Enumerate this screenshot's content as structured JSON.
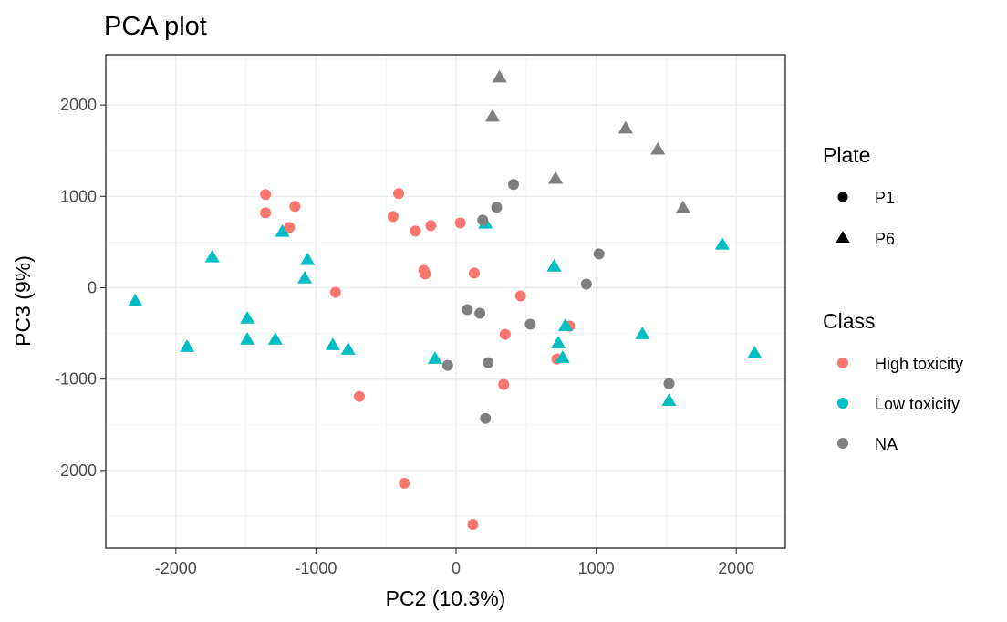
{
  "chart_data": {
    "type": "scatter",
    "title": "PCA plot",
    "xlabel": "PC2 (10.3%)",
    "ylabel": "PC3 (9%)",
    "xlim": [
      -2500,
      2350
    ],
    "ylim": [
      -2850,
      2550
    ],
    "x_ticks": [
      -2000,
      -1000,
      0,
      1000,
      2000
    ],
    "x_tick_labels": [
      "-2000",
      "-1000",
      "0",
      "1000",
      "2000"
    ],
    "y_ticks": [
      -2000,
      -1000,
      0,
      1000,
      2000
    ],
    "y_tick_labels": [
      "-2000",
      "-1000",
      "0",
      "1000",
      "2000"
    ],
    "grid": true,
    "legend_position": "right",
    "legends": {
      "shape": {
        "title": "Plate",
        "entries": [
          {
            "label": "P1",
            "shape": "circle"
          },
          {
            "label": "P6",
            "shape": "triangle"
          }
        ]
      },
      "color": {
        "title": "Class",
        "entries": [
          {
            "label": "High toxicity",
            "color": "#F8766D"
          },
          {
            "label": "Low toxicity",
            "color": "#00BFC4"
          },
          {
            "label": "NA",
            "color": "#7F7F7F"
          }
        ]
      }
    },
    "series": [
      {
        "name": "High toxicity",
        "color": "#F8766D",
        "points": [
          {
            "x": -1360,
            "y": 1020,
            "plate": "P1"
          },
          {
            "x": -1360,
            "y": 820,
            "plate": "P1"
          },
          {
            "x": -1150,
            "y": 890,
            "plate": "P1"
          },
          {
            "x": -1190,
            "y": 660,
            "plate": "P1"
          },
          {
            "x": -410,
            "y": 1030,
            "plate": "P1"
          },
          {
            "x": -450,
            "y": 780,
            "plate": "P1"
          },
          {
            "x": -290,
            "y": 620,
            "plate": "P1"
          },
          {
            "x": -180,
            "y": 680,
            "plate": "P1"
          },
          {
            "x": 30,
            "y": 710,
            "plate": "P1"
          },
          {
            "x": -230,
            "y": 190,
            "plate": "P1"
          },
          {
            "x": -220,
            "y": 150,
            "plate": "P1"
          },
          {
            "x": 130,
            "y": 160,
            "plate": "P1"
          },
          {
            "x": -860,
            "y": -50,
            "plate": "P1"
          },
          {
            "x": 460,
            "y": -90,
            "plate": "P1"
          },
          {
            "x": 350,
            "y": -510,
            "plate": "P1"
          },
          {
            "x": 810,
            "y": -420,
            "plate": "P1"
          },
          {
            "x": 720,
            "y": -780,
            "plate": "P1"
          },
          {
            "x": 340,
            "y": -1060,
            "plate": "P1"
          },
          {
            "x": -690,
            "y": -1190,
            "plate": "P1"
          },
          {
            "x": -370,
            "y": -2140,
            "plate": "P1"
          },
          {
            "x": 120,
            "y": -2590,
            "plate": "P1"
          }
        ]
      },
      {
        "name": "Low toxicity",
        "color": "#00BFC4",
        "points": [
          {
            "x": -2290,
            "y": -150,
            "plate": "P6"
          },
          {
            "x": -1920,
            "y": -650,
            "plate": "P6"
          },
          {
            "x": -1740,
            "y": 330,
            "plate": "P6"
          },
          {
            "x": -1490,
            "y": -340,
            "plate": "P6"
          },
          {
            "x": -1490,
            "y": -570,
            "plate": "P6"
          },
          {
            "x": -1290,
            "y": -570,
            "plate": "P6"
          },
          {
            "x": -1240,
            "y": 610,
            "plate": "P6"
          },
          {
            "x": -1060,
            "y": 300,
            "plate": "P6"
          },
          {
            "x": -1080,
            "y": 100,
            "plate": "P6"
          },
          {
            "x": -880,
            "y": -630,
            "plate": "P6"
          },
          {
            "x": -770,
            "y": -680,
            "plate": "P6"
          },
          {
            "x": -150,
            "y": -780,
            "plate": "P6"
          },
          {
            "x": 210,
            "y": 700,
            "plate": "P6"
          },
          {
            "x": 700,
            "y": 230,
            "plate": "P6"
          },
          {
            "x": 780,
            "y": -420,
            "plate": "P6"
          },
          {
            "x": 730,
            "y": -610,
            "plate": "P6"
          },
          {
            "x": 760,
            "y": -770,
            "plate": "P6"
          },
          {
            "x": 1330,
            "y": -510,
            "plate": "P6"
          },
          {
            "x": 1520,
            "y": -1240,
            "plate": "P6"
          },
          {
            "x": 1900,
            "y": 470,
            "plate": "P6"
          },
          {
            "x": 2130,
            "y": -720,
            "plate": "P6"
          }
        ]
      },
      {
        "name": "NA",
        "color": "#7F7F7F",
        "points": [
          {
            "x": 310,
            "y": 2300,
            "plate": "P6"
          },
          {
            "x": 260,
            "y": 1870,
            "plate": "P6"
          },
          {
            "x": 1210,
            "y": 1740,
            "plate": "P6"
          },
          {
            "x": 1440,
            "y": 1510,
            "plate": "P6"
          },
          {
            "x": 710,
            "y": 1190,
            "plate": "P6"
          },
          {
            "x": 1620,
            "y": 870,
            "plate": "P6"
          },
          {
            "x": 410,
            "y": 1130,
            "plate": "P1"
          },
          {
            "x": 290,
            "y": 880,
            "plate": "P1"
          },
          {
            "x": 190,
            "y": 740,
            "plate": "P1"
          },
          {
            "x": 1020,
            "y": 370,
            "plate": "P1"
          },
          {
            "x": 930,
            "y": 40,
            "plate": "P1"
          },
          {
            "x": 80,
            "y": -240,
            "plate": "P1"
          },
          {
            "x": 170,
            "y": -280,
            "plate": "P1"
          },
          {
            "x": 530,
            "y": -400,
            "plate": "P1"
          },
          {
            "x": -60,
            "y": -850,
            "plate": "P1"
          },
          {
            "x": 230,
            "y": -820,
            "plate": "P1"
          },
          {
            "x": 1520,
            "y": -1050,
            "plate": "P1"
          },
          {
            "x": 210,
            "y": -1430,
            "plate": "P1"
          }
        ]
      }
    ]
  }
}
